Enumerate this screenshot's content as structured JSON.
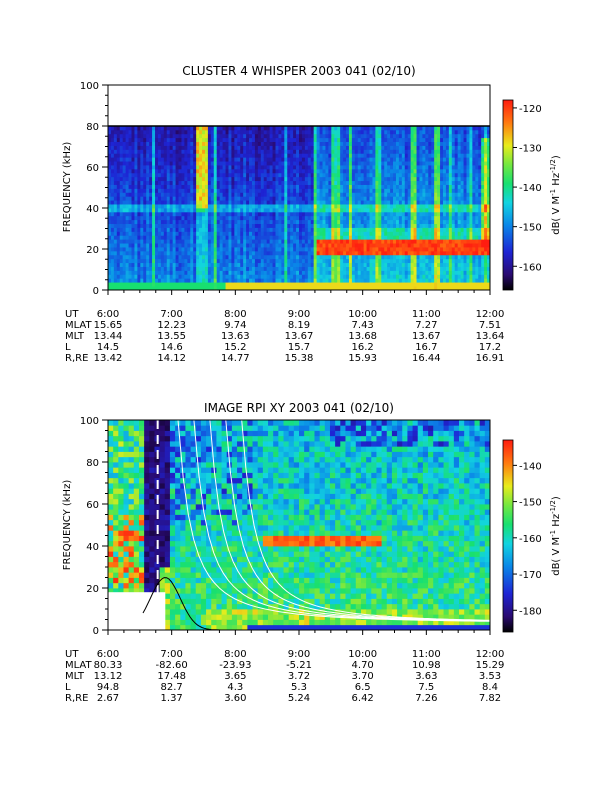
{
  "chart_data": [
    {
      "type": "heatmap",
      "title": "CLUSTER 4 WHISPER 2003 041 (02/10)",
      "ylabel": "FREQUENCY (kHz)",
      "ylim": [
        0,
        100
      ],
      "yticks": [
        "0",
        "20",
        "40",
        "60",
        "80",
        "100"
      ],
      "xlim_hours": [
        6,
        12
      ],
      "data_top_khz": 80,
      "colorbar": {
        "label": "dB( V M⁻¹ Hz⁻¹ᐟ²)",
        "label_parts": [
          "dB( V M",
          "-1",
          " Hz",
          "-1/2",
          ")"
        ],
        "ticks": [
          "-120",
          "-130",
          "-140",
          "-150",
          "-160"
        ],
        "range": [
          -166,
          -118
        ]
      },
      "features": [
        {
          "name": "fce-line",
          "from_hour": 6.0,
          "to_hour": 12.0,
          "freq_khz": 40
        },
        {
          "name": "intense-band",
          "from_hour": 9.25,
          "to_hour": 12.0,
          "freq_khz": 21
        },
        {
          "name": "low-freq-band",
          "from_hour": 7.8,
          "to_hour": 12.0,
          "freq_khz": 2
        },
        {
          "name": "burst",
          "from_hour": 7.35,
          "to_hour": 7.55,
          "freq_khz": 62
        }
      ],
      "ephemeris": {
        "rows": [
          {
            "label": "UT",
            "values": [
              "6:00",
              "7:00",
              "8:00",
              "9:00",
              "10:00",
              "11:00",
              "12:00"
            ]
          },
          {
            "label": "MLAT",
            "values": [
              "15.65",
              "12.23",
              "9.74",
              "8.19",
              "7.43",
              "7.27",
              "7.51"
            ]
          },
          {
            "label": "MLT",
            "values": [
              "13.44",
              "13.55",
              "13.63",
              "13.67",
              "13.68",
              "13.67",
              "13.64"
            ]
          },
          {
            "label": "L",
            "values": [
              "14.5",
              "14.6",
              "15.2",
              "15.7",
              "16.2",
              "16.7",
              "17.2"
            ]
          },
          {
            "label": "R,RE",
            "values": [
              "13.42",
              "14.12",
              "14.77",
              "15.38",
              "15.93",
              "16.44",
              "16.91"
            ]
          }
        ]
      }
    },
    {
      "type": "heatmap",
      "title": "IMAGE RPI XY 2003 041 (02/10)",
      "ylabel": "FREQUENCY (kHz)",
      "ylim": [
        0,
        100
      ],
      "yticks": [
        "0",
        "20",
        "40",
        "60",
        "80",
        "100"
      ],
      "xlim_hours": [
        6,
        12
      ],
      "colorbar": {
        "label": "dB( V M⁻¹ Hz⁻¹ᐟ²)",
        "label_parts": [
          "dB( V M",
          "-1",
          " Hz",
          "-1/2",
          ")"
        ],
        "ticks": [
          "-140",
          "-150",
          "-160",
          "-170",
          "-180"
        ],
        "range": [
          -186,
          -133
        ]
      },
      "features": [
        {
          "name": "dark-gap",
          "from_hour": 6.55,
          "to_hour": 6.95
        },
        {
          "name": "white-curves",
          "start_hours": [
            7.1,
            7.35,
            7.6,
            7.85,
            8.1
          ]
        },
        {
          "name": "black-curve",
          "from_hour": 6.9,
          "to_hour": 8.4,
          "peak_khz": 25
        }
      ],
      "ephemeris": {
        "rows": [
          {
            "label": "UT",
            "values": [
              "6:00",
              "7:00",
              "8:00",
              "9:00",
              "10:00",
              "11:00",
              "12:00"
            ]
          },
          {
            "label": "MLAT",
            "values": [
              "80.33",
              "-82.60",
              "-23.93",
              "-5.21",
              "4.70",
              "10.98",
              "15.29"
            ]
          },
          {
            "label": "MLT",
            "values": [
              "13.12",
              "17.48",
              "3.65",
              "3.72",
              "3.70",
              "3.63",
              "3.53"
            ]
          },
          {
            "label": "L",
            "values": [
              "94.8",
              "82.7",
              "4.3",
              "5.3",
              "6.5",
              "7.5",
              "8.4"
            ]
          },
          {
            "label": "R,RE",
            "values": [
              "2.67",
              "1.37",
              "3.60",
              "5.24",
              "6.42",
              "7.26",
              "7.82"
            ]
          }
        ]
      }
    }
  ]
}
